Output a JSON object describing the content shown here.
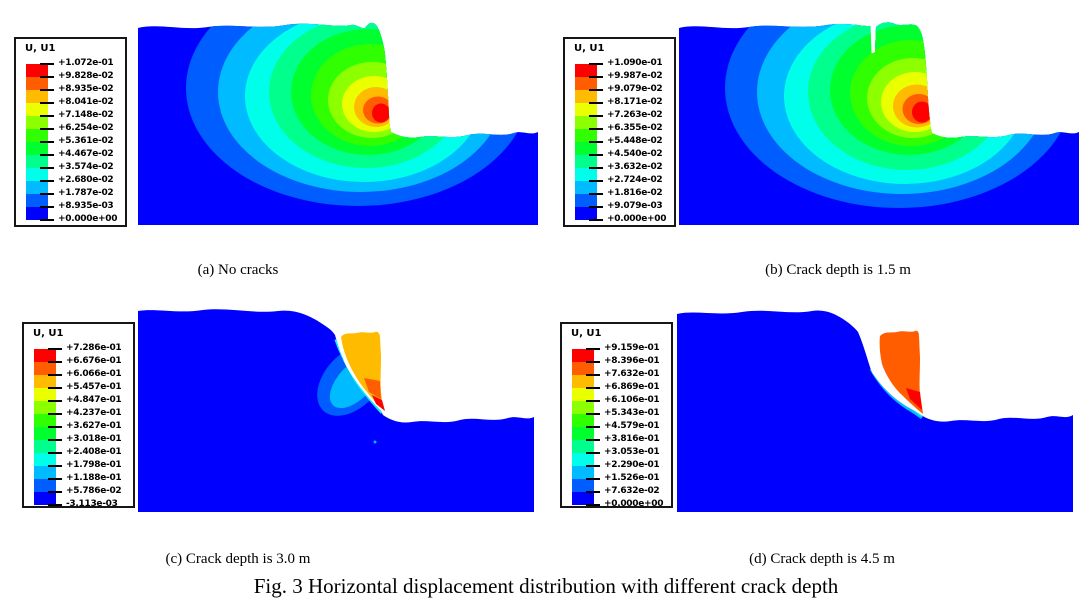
{
  "figure": {
    "title": "Fig. 3 Horizontal displacement distribution with different crack depth"
  },
  "palette": {
    "bands": [
      "#FF0000",
      "#FF5D00",
      "#FFBB00",
      "#EAFF00",
      "#8CFF00",
      "#2FFF00",
      "#00FF2F",
      "#00FF8C",
      "#00FFEA",
      "#00BBFF",
      "#005DFF",
      "#0000FF"
    ],
    "domain_base": "#0000FF",
    "crack_gap": "#FFFFFF"
  },
  "panels": [
    {
      "id": "a",
      "legend_title": "U, U1",
      "caption": "(a) No cracks",
      "legend_values": [
        "+1.072e-01",
        "+9.828e-02",
        "+8.935e-02",
        "+8.041e-02",
        "+7.148e-02",
        "+6.254e-02",
        "+5.361e-02",
        "+4.467e-02",
        "+3.574e-02",
        "+2.680e-02",
        "+1.787e-02",
        "+8.935e-03",
        "+0.000e+00"
      ]
    },
    {
      "id": "b",
      "legend_title": "U, U1",
      "caption": "(b) Crack depth is 1.5 m",
      "legend_values": [
        "+1.090e-01",
        "+9.987e-02",
        "+9.079e-02",
        "+8.171e-02",
        "+7.263e-02",
        "+6.355e-02",
        "+5.448e-02",
        "+4.540e-02",
        "+3.632e-02",
        "+2.724e-02",
        "+1.816e-02",
        "+9.079e-03",
        "+0.000e+00"
      ]
    },
    {
      "id": "c",
      "legend_title": "U, U1",
      "caption": "(c) Crack depth is 3.0 m",
      "legend_values": [
        "+7.286e-01",
        "+6.676e-01",
        "+6.066e-01",
        "+5.457e-01",
        "+4.847e-01",
        "+4.237e-01",
        "+3.627e-01",
        "+3.018e-01",
        "+2.408e-01",
        "+1.798e-01",
        "+1.188e-01",
        "+5.786e-02",
        "-3.113e-03"
      ]
    },
    {
      "id": "d",
      "legend_title": "U, U1",
      "caption": "(d) Crack depth is 4.5 m",
      "legend_values": [
        "+9.159e-01",
        "+8.396e-01",
        "+7.632e-01",
        "+6.869e-01",
        "+6.106e-01",
        "+5.343e-01",
        "+4.579e-01",
        "+3.816e-01",
        "+3.053e-01",
        "+2.290e-01",
        "+1.526e-01",
        "+7.632e-02",
        "+0.000e+00"
      ]
    }
  ]
}
